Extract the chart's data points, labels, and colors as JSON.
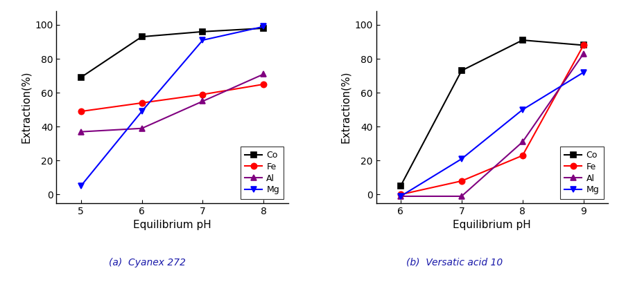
{
  "panel_a": {
    "xlabel": "Equilibrium pH",
    "ylabel": "Extraction(%)",
    "x": [
      5,
      6,
      7,
      8
    ],
    "Co": [
      69,
      93,
      96,
      98
    ],
    "Fe": [
      49,
      54,
      59,
      65
    ],
    "Al": [
      37,
      39,
      55,
      71
    ],
    "Mg": [
      5,
      49,
      91,
      99
    ],
    "ylim": [
      -5,
      108
    ],
    "xlim": [
      4.6,
      8.4
    ],
    "xticks": [
      5,
      6,
      7,
      8
    ]
  },
  "panel_b": {
    "xlabel": "Equilibrium pH",
    "ylabel": "Extraction(%)",
    "x": [
      6,
      7,
      8,
      9
    ],
    "Co": [
      5,
      73,
      91,
      88
    ],
    "Fe": [
      0,
      8,
      23,
      88
    ],
    "Al": [
      -1,
      -1,
      31,
      83
    ],
    "Mg": [
      -1,
      21,
      50,
      72
    ],
    "ylim": [
      -5,
      108
    ],
    "xlim": [
      5.6,
      9.4
    ],
    "xticks": [
      6,
      7,
      8,
      9
    ]
  },
  "colors": {
    "Co": "#000000",
    "Fe": "#ff0000",
    "Al": "#800080",
    "Mg": "#0000ff"
  },
  "markers": {
    "Co": "s",
    "Fe": "o",
    "Al": "^",
    "Mg": "v"
  },
  "caption_a": "(a)  Cyanex 272",
  "caption_b": "(b)  Versatic acid 10",
  "title_color": "#1a1aaa",
  "linewidth": 1.5,
  "markersize": 6,
  "font_size_label": 11,
  "font_size_tick": 10,
  "font_size_legend": 9,
  "font_size_caption": 10
}
